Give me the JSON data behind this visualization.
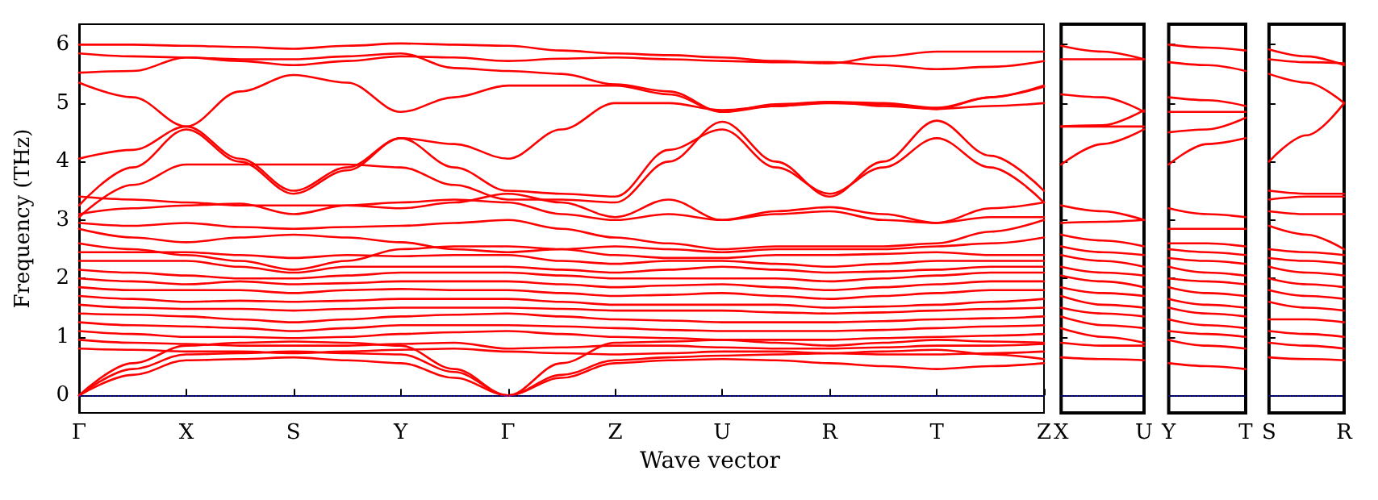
{
  "chart_data": [
    {
      "type": "line",
      "xlabel": "Wave vector",
      "ylabel": "Frequency (THz)",
      "categories": [
        "Γ",
        null,
        "X",
        null,
        "S",
        null,
        "Y",
        null,
        "Γ",
        null,
        "Z",
        null,
        "U",
        null,
        "R",
        null,
        "T",
        null,
        "Z"
      ],
      "ylim": [
        -0.3,
        6.35
      ],
      "yticks": [
        0,
        1,
        2,
        3,
        4,
        5,
        6
      ],
      "ref_lines": [
        {
          "axis": "y",
          "value": 0,
          "color": "#0000ff",
          "line_style": "dotted"
        }
      ],
      "series": [
        {
          "color": "#ff0000",
          "values": [
            6.0,
            6.0,
            5.98,
            5.96,
            5.93,
            5.98,
            6.02,
            6.0,
            5.98,
            5.9,
            5.85,
            5.82,
            5.78,
            5.72,
            5.68,
            5.8,
            5.88,
            5.88,
            5.88
          ]
        },
        {
          "color": "#ff0000",
          "values": [
            5.85,
            5.8,
            5.78,
            5.72,
            5.65,
            5.72,
            5.8,
            5.78,
            5.72,
            5.76,
            5.78,
            5.75,
            5.72,
            5.7,
            5.7,
            5.65,
            5.58,
            5.62,
            5.72
          ]
        },
        {
          "color": "#ff0000",
          "values": [
            5.52,
            5.55,
            5.78,
            5.75,
            5.75,
            5.8,
            5.85,
            5.6,
            5.55,
            5.5,
            5.32,
            5.2,
            4.85,
            4.95,
            5.02,
            5.0,
            4.92,
            5.1,
            5.28
          ]
        },
        {
          "color": "#ff0000",
          "values": [
            5.35,
            5.1,
            4.6,
            4.05,
            3.5,
            3.9,
            4.4,
            4.3,
            4.05,
            4.55,
            5.0,
            5.0,
            4.88,
            4.95,
            5.0,
            4.98,
            4.9,
            4.95,
            5.0
          ]
        },
        {
          "color": "#ff0000",
          "values": [
            4.05,
            4.2,
            4.6,
            5.2,
            5.48,
            5.35,
            4.85,
            5.1,
            5.3,
            5.3,
            5.3,
            5.15,
            4.85,
            4.98,
            5.02,
            4.95,
            4.9,
            5.1,
            5.3
          ]
        },
        {
          "color": "#ff0000",
          "values": [
            3.25,
            3.9,
            4.55,
            4.0,
            3.45,
            3.85,
            4.4,
            3.9,
            3.5,
            3.45,
            3.4,
            4.2,
            4.55,
            3.9,
            3.45,
            3.9,
            4.4,
            3.9,
            3.3
          ]
        },
        {
          "color": "#ff0000",
          "values": [
            3.05,
            3.6,
            3.95,
            3.95,
            3.95,
            3.95,
            3.9,
            3.6,
            3.35,
            3.35,
            3.3,
            4.0,
            4.68,
            4.0,
            3.4,
            4.0,
            4.7,
            4.1,
            3.5
          ]
        },
        {
          "color": "#ff0000",
          "values": [
            3.4,
            3.35,
            3.3,
            3.25,
            3.25,
            3.25,
            3.2,
            3.3,
            3.45,
            3.3,
            3.05,
            3.35,
            3.0,
            3.15,
            3.22,
            3.1,
            2.95,
            3.2,
            3.3
          ]
        },
        {
          "color": "#ff0000",
          "values": [
            3.1,
            3.2,
            3.25,
            3.28,
            3.1,
            3.25,
            3.3,
            3.35,
            3.3,
            3.1,
            3.0,
            3.1,
            3.0,
            3.1,
            3.15,
            3.0,
            2.95,
            3.05,
            3.05
          ]
        },
        {
          "color": "#ff0000",
          "values": [
            2.95,
            2.9,
            2.95,
            2.88,
            2.85,
            2.88,
            2.9,
            2.95,
            3.0,
            2.85,
            2.7,
            2.6,
            2.5,
            2.55,
            2.55,
            2.55,
            2.6,
            2.8,
            3.0
          ]
        },
        {
          "color": "#ff0000",
          "values": [
            2.85,
            2.7,
            2.62,
            2.7,
            2.75,
            2.7,
            2.62,
            2.5,
            2.45,
            2.5,
            2.55,
            2.5,
            2.45,
            2.5,
            2.5,
            2.5,
            2.55,
            2.6,
            2.7
          ]
        },
        {
          "color": "#ff0000",
          "values": [
            2.6,
            2.5,
            2.4,
            2.3,
            2.15,
            2.3,
            2.5,
            2.55,
            2.55,
            2.5,
            2.4,
            2.35,
            2.35,
            2.4,
            2.4,
            2.42,
            2.45,
            2.4,
            2.4
          ]
        },
        {
          "color": "#ff0000",
          "values": [
            2.45,
            2.45,
            2.45,
            2.4,
            2.35,
            2.4,
            2.38,
            2.4,
            2.4,
            2.3,
            2.25,
            2.3,
            2.3,
            2.25,
            2.2,
            2.25,
            2.3,
            2.3,
            2.3
          ]
        },
        {
          "color": "#ff0000",
          "values": [
            2.3,
            2.3,
            2.3,
            2.2,
            2.1,
            2.2,
            2.2,
            2.2,
            2.2,
            2.15,
            2.1,
            2.15,
            2.2,
            2.15,
            2.1,
            2.12,
            2.15,
            2.2,
            2.2
          ]
        },
        {
          "color": "#ff0000",
          "values": [
            2.15,
            2.1,
            2.05,
            2.0,
            2.0,
            2.05,
            2.1,
            2.1,
            2.1,
            2.05,
            2.0,
            2.0,
            2.0,
            2.0,
            1.95,
            2.0,
            2.05,
            2.1,
            2.1
          ]
        },
        {
          "color": "#ff0000",
          "values": [
            2.0,
            1.95,
            1.9,
            1.95,
            1.9,
            1.92,
            1.95,
            1.95,
            1.95,
            1.9,
            1.85,
            1.88,
            1.9,
            1.85,
            1.8,
            1.85,
            1.9,
            1.95,
            1.95
          ]
        },
        {
          "color": "#ff0000",
          "values": [
            1.85,
            1.8,
            1.8,
            1.8,
            1.75,
            1.8,
            1.82,
            1.8,
            1.8,
            1.75,
            1.7,
            1.72,
            1.75,
            1.7,
            1.65,
            1.7,
            1.75,
            1.8,
            1.8
          ]
        },
        {
          "color": "#ff0000",
          "values": [
            1.7,
            1.65,
            1.6,
            1.62,
            1.6,
            1.62,
            1.65,
            1.65,
            1.65,
            1.6,
            1.55,
            1.55,
            1.55,
            1.55,
            1.5,
            1.52,
            1.55,
            1.6,
            1.65
          ]
        },
        {
          "color": "#ff0000",
          "values": [
            1.55,
            1.5,
            1.48,
            1.48,
            1.45,
            1.48,
            1.5,
            1.5,
            1.5,
            1.48,
            1.45,
            1.45,
            1.45,
            1.42,
            1.4,
            1.42,
            1.45,
            1.48,
            1.5
          ]
        },
        {
          "color": "#ff0000",
          "values": [
            1.4,
            1.38,
            1.35,
            1.3,
            1.25,
            1.3,
            1.35,
            1.38,
            1.4,
            1.35,
            1.3,
            1.28,
            1.25,
            1.25,
            1.25,
            1.27,
            1.3,
            1.32,
            1.35
          ]
        },
        {
          "color": "#ff0000",
          "values": [
            1.25,
            1.2,
            1.18,
            1.15,
            1.1,
            1.15,
            1.2,
            1.2,
            1.2,
            1.18,
            1.15,
            1.12,
            1.1,
            1.1,
            1.1,
            1.12,
            1.15,
            1.18,
            1.2
          ]
        },
        {
          "color": "#ff0000",
          "values": [
            1.1,
            1.05,
            1.0,
            1.0,
            0.98,
            1.0,
            1.05,
            1.08,
            1.1,
            1.05,
            1.0,
            0.98,
            0.95,
            0.95,
            0.95,
            0.98,
            1.0,
            1.02,
            1.05
          ]
        },
        {
          "color": "#ff0000",
          "values": [
            0.95,
            0.9,
            0.88,
            0.85,
            0.85,
            0.85,
            0.88,
            0.9,
            0.8,
            0.82,
            0.85,
            0.85,
            0.82,
            0.8,
            0.8,
            0.82,
            0.85,
            0.85,
            0.88
          ]
        },
        {
          "color": "#ff0000",
          "values": [
            0.8,
            0.78,
            0.75,
            0.75,
            0.72,
            0.75,
            0.78,
            0.8,
            0.75,
            0.72,
            0.7,
            0.72,
            0.75,
            0.75,
            0.72,
            0.7,
            0.7,
            0.72,
            0.75
          ]
        },
        {
          "color": "#ff0000",
          "values": [
            0,
            0.55,
            0.85,
            0.9,
            0.92,
            0.9,
            0.85,
            0.45,
            0,
            0.55,
            0.9,
            0.92,
            0.95,
            0.9,
            0.85,
            0.9,
            0.95,
            0.92,
            0.9
          ]
        },
        {
          "color": "#ff0000",
          "values": [
            0,
            0.45,
            0.7,
            0.72,
            0.75,
            0.72,
            0.7,
            0.4,
            0,
            0.35,
            0.6,
            0.65,
            0.68,
            0.7,
            0.72,
            0.75,
            0.78,
            0.7,
            0.62
          ]
        },
        {
          "color": "#ff0000",
          "values": [
            0,
            0.35,
            0.6,
            0.62,
            0.65,
            0.6,
            0.55,
            0.3,
            0,
            0.3,
            0.55,
            0.6,
            0.62,
            0.6,
            0.55,
            0.5,
            0.45,
            0.5,
            0.55
          ]
        }
      ]
    },
    {
      "type": "line",
      "categories": [
        "X",
        null,
        "U"
      ],
      "ylim": [
        -0.3,
        6.35
      ],
      "yticks": [
        0,
        1,
        2,
        3,
        4,
        5,
        6
      ],
      "tick_labels": "x",
      "ref_lines": [
        {
          "axis": "y",
          "value": 0,
          "color": "#0000ff",
          "line_style": "dotted"
        }
      ],
      "series": [
        {
          "color": "#ff0000",
          "values": [
            5.98,
            5.88,
            5.75
          ]
        },
        {
          "color": "#ff0000",
          "values": [
            5.75,
            5.75,
            5.75
          ]
        },
        {
          "color": "#ff0000",
          "values": [
            5.15,
            5.1,
            4.85
          ]
        },
        {
          "color": "#ff0000",
          "values": [
            4.6,
            4.6,
            4.6
          ]
        },
        {
          "color": "#ff0000",
          "values": [
            4.6,
            4.62,
            4.88
          ]
        },
        {
          "color": "#ff0000",
          "values": [
            3.95,
            4.3,
            4.55
          ]
        },
        {
          "color": "#ff0000",
          "values": [
            3.25,
            3.15,
            3.0
          ]
        },
        {
          "color": "#ff0000",
          "values": [
            2.95,
            2.97,
            3.0
          ]
        },
        {
          "color": "#ff0000",
          "values": [
            2.75,
            2.65,
            2.55
          ]
        },
        {
          "color": "#ff0000",
          "values": [
            2.55,
            2.45,
            2.4
          ]
        },
        {
          "color": "#ff0000",
          "values": [
            2.4,
            2.3,
            2.2
          ]
        },
        {
          "color": "#ff0000",
          "values": [
            2.2,
            2.1,
            2.05
          ]
        },
        {
          "color": "#ff0000",
          "values": [
            2.05,
            1.95,
            1.85
          ]
        },
        {
          "color": "#ff0000",
          "values": [
            1.85,
            1.75,
            1.7
          ]
        },
        {
          "color": "#ff0000",
          "values": [
            1.7,
            1.55,
            1.5
          ]
        },
        {
          "color": "#ff0000",
          "values": [
            1.5,
            1.4,
            1.35
          ]
        },
        {
          "color": "#ff0000",
          "values": [
            1.35,
            1.2,
            1.15
          ]
        },
        {
          "color": "#ff0000",
          "values": [
            1.15,
            1.0,
            0.9
          ]
        },
        {
          "color": "#ff0000",
          "values": [
            0.9,
            0.85,
            0.85
          ]
        },
        {
          "color": "#ff0000",
          "values": [
            0.65,
            0.62,
            0.6
          ]
        }
      ]
    },
    {
      "type": "line",
      "categories": [
        "Y",
        null,
        "T"
      ],
      "ylim": [
        -0.3,
        6.35
      ],
      "yticks": [
        0,
        1,
        2,
        3,
        4,
        5,
        6
      ],
      "tick_labels": "x",
      "ref_lines": [
        {
          "axis": "y",
          "value": 0,
          "color": "#0000ff",
          "line_style": "dotted"
        }
      ],
      "series": [
        {
          "color": "#ff0000",
          "values": [
            6.0,
            5.95,
            5.9
          ]
        },
        {
          "color": "#ff0000",
          "values": [
            5.7,
            5.65,
            5.55
          ]
        },
        {
          "color": "#ff0000",
          "values": [
            5.1,
            5.05,
            4.95
          ]
        },
        {
          "color": "#ff0000",
          "values": [
            4.85,
            4.85,
            4.85
          ]
        },
        {
          "color": "#ff0000",
          "values": [
            4.5,
            4.55,
            4.75
          ]
        },
        {
          "color": "#ff0000",
          "values": [
            3.95,
            4.3,
            4.4
          ]
        },
        {
          "color": "#ff0000",
          "values": [
            3.2,
            3.1,
            3.05
          ]
        },
        {
          "color": "#ff0000",
          "values": [
            2.85,
            2.85,
            2.85
          ]
        },
        {
          "color": "#ff0000",
          "values": [
            2.6,
            2.6,
            2.55
          ]
        },
        {
          "color": "#ff0000",
          "values": [
            2.5,
            2.45,
            2.4
          ]
        },
        {
          "color": "#ff0000",
          "values": [
            2.35,
            2.3,
            2.25
          ]
        },
        {
          "color": "#ff0000",
          "values": [
            2.2,
            2.1,
            2.05
          ]
        },
        {
          "color": "#ff0000",
          "values": [
            2.0,
            1.95,
            1.9
          ]
        },
        {
          "color": "#ff0000",
          "values": [
            1.85,
            1.75,
            1.7
          ]
        },
        {
          "color": "#ff0000",
          "values": [
            1.65,
            1.55,
            1.5
          ]
        },
        {
          "color": "#ff0000",
          "values": [
            1.5,
            1.4,
            1.35
          ]
        },
        {
          "color": "#ff0000",
          "values": [
            1.3,
            1.2,
            1.15
          ]
        },
        {
          "color": "#ff0000",
          "values": [
            1.1,
            1.05,
            1.0
          ]
        },
        {
          "color": "#ff0000",
          "values": [
            0.95,
            0.85,
            0.8
          ]
        },
        {
          "color": "#ff0000",
          "values": [
            0.55,
            0.5,
            0.45
          ]
        }
      ]
    },
    {
      "type": "line",
      "categories": [
        "S",
        null,
        "R"
      ],
      "ylim": [
        -0.3,
        6.35
      ],
      "yticks": [
        0,
        1,
        2,
        3,
        4,
        5,
        6
      ],
      "tick_labels": "x",
      "ref_lines": [
        {
          "axis": "y",
          "value": 0,
          "color": "#0000ff",
          "line_style": "dotted"
        }
      ],
      "series": [
        {
          "color": "#ff0000",
          "values": [
            5.92,
            5.8,
            5.65
          ]
        },
        {
          "color": "#ff0000",
          "values": [
            5.75,
            5.7,
            5.68
          ]
        },
        {
          "color": "#ff0000",
          "values": [
            5.5,
            5.35,
            5.0
          ]
        },
        {
          "color": "#ff0000",
          "values": [
            4.0,
            4.45,
            5.0
          ]
        },
        {
          "color": "#ff0000",
          "values": [
            3.5,
            3.45,
            3.45
          ]
        },
        {
          "color": "#ff0000",
          "values": [
            3.35,
            3.4,
            3.4
          ]
        },
        {
          "color": "#ff0000",
          "values": [
            3.15,
            3.1,
            3.1
          ]
        },
        {
          "color": "#ff0000",
          "values": [
            2.9,
            2.75,
            2.5
          ]
        },
        {
          "color": "#ff0000",
          "values": [
            2.5,
            2.45,
            2.4
          ]
        },
        {
          "color": "#ff0000",
          "values": [
            2.35,
            2.3,
            2.25
          ]
        },
        {
          "color": "#ff0000",
          "values": [
            2.2,
            2.1,
            2.05
          ]
        },
        {
          "color": "#ff0000",
          "values": [
            2.0,
            1.9,
            1.85
          ]
        },
        {
          "color": "#ff0000",
          "values": [
            1.8,
            1.7,
            1.65
          ]
        },
        {
          "color": "#ff0000",
          "values": [
            1.6,
            1.5,
            1.45
          ]
        },
        {
          "color": "#ff0000",
          "values": [
            1.3,
            1.3,
            1.25
          ]
        },
        {
          "color": "#ff0000",
          "values": [
            1.1,
            1.05,
            1.0
          ]
        },
        {
          "color": "#ff0000",
          "values": [
            0.9,
            0.85,
            0.8
          ]
        },
        {
          "color": "#ff0000",
          "values": [
            0.65,
            0.62,
            0.6
          ]
        }
      ]
    }
  ]
}
